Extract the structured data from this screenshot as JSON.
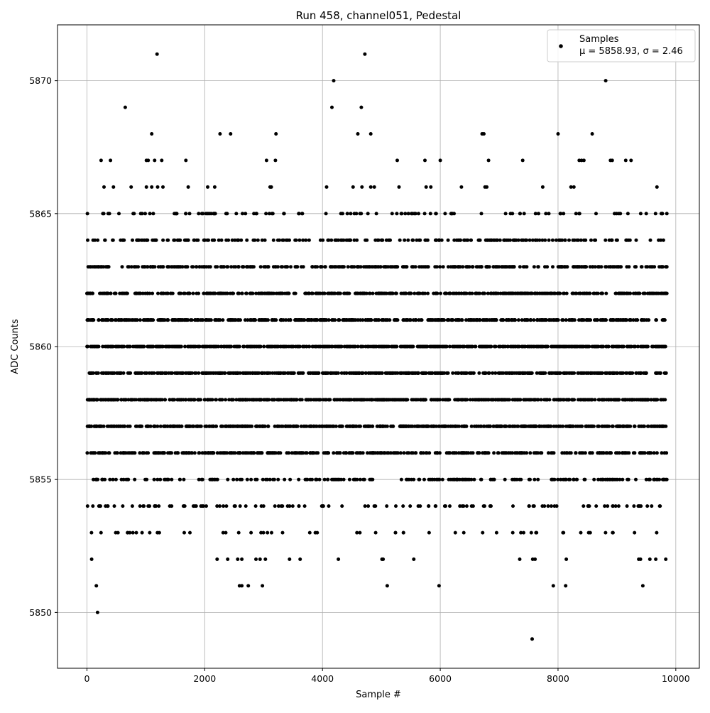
{
  "chart_data": {
    "type": "scatter",
    "title": "Run 458, channel051, Pedestal",
    "xlabel": "Sample #",
    "ylabel": "ADC Counts",
    "xlim": [
      -500,
      10400
    ],
    "ylim": [
      5847.9,
      5872.1
    ],
    "xticks": [
      0,
      2000,
      4000,
      6000,
      8000,
      10000
    ],
    "yticks": [
      5850,
      5855,
      5860,
      5865,
      5870
    ],
    "grid": true,
    "legend": {
      "placement": "top-right",
      "series_label": "Samples",
      "stats_label": "μ = 5858.93, σ = 2.46"
    },
    "series": [
      {
        "name": "Samples",
        "marker": "circle",
        "color": "#000000",
        "stats": {
          "mean": 5858.93,
          "sigma": 2.46
        },
        "note": "outlier and representative points; dense ADC levels 5853-5866 are filled across 0-9850 samples",
        "points": [
          [
            1190,
            5871
          ],
          [
            4720,
            5871
          ],
          [
            4190,
            5870
          ],
          [
            8810,
            5870
          ],
          [
            650,
            5869
          ],
          [
            4160,
            5869
          ],
          [
            4660,
            5869
          ],
          [
            1100,
            5868
          ],
          [
            2260,
            5868
          ],
          [
            2440,
            5868
          ],
          [
            3210,
            5868
          ],
          [
            4600,
            5868
          ],
          [
            4820,
            5868
          ],
          [
            6710,
            5868
          ],
          [
            6740,
            5868
          ],
          [
            8000,
            5868
          ],
          [
            8580,
            5868
          ],
          [
            240,
            5867
          ],
          [
            400,
            5867
          ],
          [
            1010,
            5867
          ],
          [
            1040,
            5867
          ],
          [
            1150,
            5867
          ],
          [
            1270,
            5867
          ],
          [
            1680,
            5867
          ],
          [
            3050,
            5867
          ],
          [
            3200,
            5867
          ],
          [
            5270,
            5867
          ],
          [
            5740,
            5867
          ],
          [
            6000,
            5867
          ],
          [
            6820,
            5867
          ],
          [
            7400,
            5867
          ],
          [
            8360,
            5867
          ],
          [
            8400,
            5867
          ],
          [
            8440,
            5867
          ],
          [
            8890,
            5867
          ],
          [
            8920,
            5867
          ],
          [
            9150,
            5867
          ],
          [
            9240,
            5867
          ],
          [
            290,
            5866
          ],
          [
            450,
            5866
          ],
          [
            750,
            5866
          ],
          [
            1010,
            5866
          ],
          [
            1100,
            5866
          ],
          [
            1200,
            5866
          ],
          [
            1290,
            5866
          ],
          [
            1720,
            5866
          ],
          [
            2050,
            5866
          ],
          [
            2170,
            5866
          ],
          [
            3110,
            5866
          ],
          [
            3130,
            5866
          ],
          [
            4070,
            5866
          ],
          [
            4520,
            5866
          ],
          [
            4670,
            5866
          ],
          [
            4820,
            5866
          ],
          [
            4880,
            5866
          ],
          [
            5300,
            5866
          ],
          [
            5760,
            5866
          ],
          [
            5840,
            5866
          ],
          [
            6360,
            5866
          ],
          [
            6760,
            5866
          ],
          [
            6790,
            5866
          ],
          [
            7740,
            5866
          ],
          [
            8220,
            5866
          ],
          [
            8270,
            5866
          ],
          [
            9680,
            5866
          ],
          [
            5980,
            5851
          ],
          [
            8130,
            5851
          ],
          [
            7920,
            5851
          ],
          [
            9440,
            5851
          ],
          [
            160,
            5851
          ],
          [
            2590,
            5851
          ],
          [
            2630,
            5851
          ],
          [
            2740,
            5851
          ],
          [
            2980,
            5851
          ],
          [
            5100,
            5851
          ],
          [
            80,
            5852
          ],
          [
            2210,
            5852
          ],
          [
            2390,
            5852
          ],
          [
            2560,
            5852
          ],
          [
            2630,
            5852
          ],
          [
            2870,
            5852
          ],
          [
            2940,
            5852
          ],
          [
            3030,
            5852
          ],
          [
            3440,
            5852
          ],
          [
            3620,
            5852
          ],
          [
            4270,
            5852
          ],
          [
            5010,
            5852
          ],
          [
            5030,
            5852
          ],
          [
            5550,
            5852
          ],
          [
            7350,
            5852
          ],
          [
            7570,
            5852
          ],
          [
            7610,
            5852
          ],
          [
            8140,
            5852
          ],
          [
            9370,
            5852
          ],
          [
            9400,
            5852
          ],
          [
            9560,
            5852
          ],
          [
            9660,
            5852
          ],
          [
            9830,
            5852
          ],
          [
            180,
            5850
          ],
          [
            7560,
            5849
          ]
        ]
      }
    ]
  }
}
